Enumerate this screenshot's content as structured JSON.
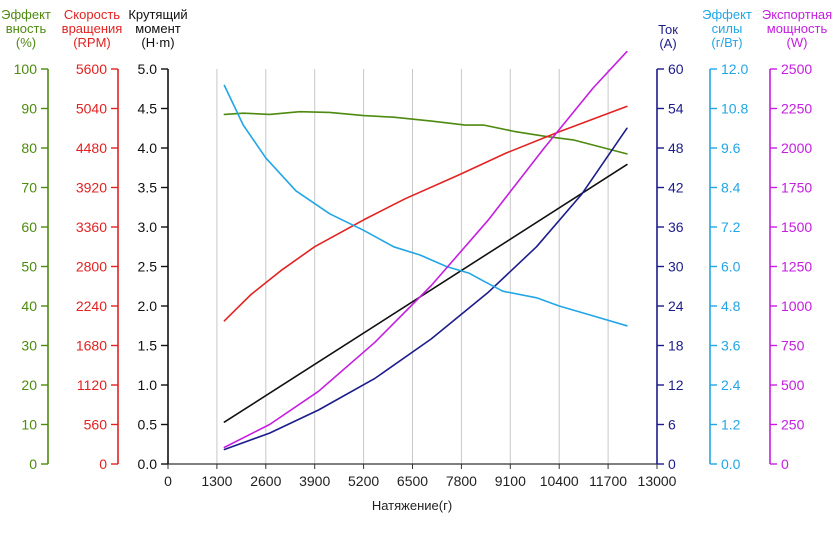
{
  "chart_data": {
    "type": "line",
    "title": "",
    "xlabel": "Натяжение(г)",
    "x_ticks": [
      "0",
      "1300",
      "2600",
      "3900",
      "5200",
      "6500",
      "7800",
      "9100",
      "10400",
      "11700",
      "13000"
    ],
    "xlim": [
      0,
      13000
    ],
    "grid": "vertical",
    "legend": "none",
    "axes": {
      "efficiency": {
        "header": [
          "Эффект",
          "вность",
          "(%)"
        ],
        "range": [
          0,
          100
        ],
        "ticks": [
          "0",
          "10",
          "20",
          "30",
          "40",
          "50",
          "60",
          "70",
          "80",
          "90",
          "100"
        ],
        "color": "#4e8a0f"
      },
      "speed": {
        "header": [
          "Скорость",
          "вращения",
          "(RPM)"
        ],
        "range": [
          0,
          5600
        ],
        "ticks": [
          "0",
          "560",
          "1120",
          "1680",
          "2240",
          "2800",
          "3360",
          "3920",
          "4480",
          "5040",
          "5600"
        ],
        "color": "#e32222"
      },
      "torque": {
        "header": [
          "Крутящий",
          "момент",
          "(Н·m)"
        ],
        "range": [
          0,
          5.0
        ],
        "ticks": [
          "0.0",
          "0.5",
          "1.0",
          "1.5",
          "2.0",
          "2.5",
          "3.0",
          "3.5",
          "4.0",
          "4.5",
          "5.0"
        ],
        "color": "#111111"
      },
      "current": {
        "header": [
          "Ток",
          "(A)"
        ],
        "range": [
          0,
          60
        ],
        "ticks": [
          "0",
          "6",
          "12",
          "18",
          "24",
          "30",
          "36",
          "42",
          "48",
          "54",
          "60"
        ],
        "color": "#1c1c8c"
      },
      "force_efficiency": {
        "header": [
          "Эффект",
          "силы",
          "(г/Вт)"
        ],
        "range": [
          0,
          12
        ],
        "ticks": [
          "0.0",
          "1.2",
          "2.4",
          "3.6",
          "4.8",
          "6.0",
          "7.2",
          "8.4",
          "9.6",
          "10.8",
          "12.0"
        ],
        "color": "#22a6e6"
      },
      "power": {
        "header": [
          "Экспортная",
          "мощность",
          "(W)"
        ],
        "range": [
          0,
          2500
        ],
        "ticks": [
          "0",
          "250",
          "500",
          "750",
          "1000",
          "1250",
          "1500",
          "1750",
          "2000",
          "2250",
          "2500"
        ],
        "color": "#c51ee0"
      }
    },
    "series": [
      {
        "axis": "efficiency",
        "color": "#4e8a0f",
        "points": [
          [
            1500,
            88.5
          ],
          [
            2000,
            88.8
          ],
          [
            2700,
            88.5
          ],
          [
            3500,
            89.2
          ],
          [
            4300,
            89.0
          ],
          [
            5200,
            88.2
          ],
          [
            6000,
            87.8
          ],
          [
            7000,
            86.8
          ],
          [
            7900,
            85.8
          ],
          [
            8400,
            85.8
          ],
          [
            9200,
            84.2
          ],
          [
            10000,
            83.0
          ],
          [
            10800,
            82.0
          ],
          [
            12200,
            78.5
          ]
        ]
      },
      {
        "axis": "speed",
        "color": "#e32222",
        "points": [
          [
            1500,
            2030
          ],
          [
            2200,
            2400
          ],
          [
            3000,
            2740
          ],
          [
            3900,
            3080
          ],
          [
            5200,
            3460
          ],
          [
            6300,
            3760
          ],
          [
            7700,
            4090
          ],
          [
            9000,
            4410
          ],
          [
            10400,
            4710
          ],
          [
            11800,
            4990
          ],
          [
            12200,
            5070
          ]
        ]
      },
      {
        "axis": "torque",
        "color": "#111111",
        "points": [
          [
            1500,
            0.53
          ],
          [
            12200,
            3.79
          ]
        ]
      },
      {
        "axis": "current",
        "color": "#1c1c8c",
        "points": [
          [
            1500,
            2.2
          ],
          [
            2700,
            4.7
          ],
          [
            4000,
            8.2
          ],
          [
            5500,
            13.0
          ],
          [
            7000,
            19.0
          ],
          [
            8500,
            26.0
          ],
          [
            9800,
            33.0
          ],
          [
            11000,
            41.0
          ],
          [
            12200,
            51.0
          ]
        ]
      },
      {
        "axis": "force_efficiency",
        "color": "#22a6e6",
        "points": [
          [
            1500,
            11.5
          ],
          [
            2000,
            10.3
          ],
          [
            2600,
            9.3
          ],
          [
            3400,
            8.3
          ],
          [
            4300,
            7.6
          ],
          [
            5200,
            7.1
          ],
          [
            6000,
            6.6
          ],
          [
            6700,
            6.35
          ],
          [
            7400,
            6.0
          ],
          [
            8000,
            5.8
          ],
          [
            8400,
            5.55
          ],
          [
            8900,
            5.25
          ],
          [
            9800,
            5.05
          ],
          [
            10400,
            4.8
          ],
          [
            11300,
            4.5
          ],
          [
            12200,
            4.2
          ]
        ]
      },
      {
        "axis": "power",
        "color": "#c51ee0",
        "points": [
          [
            1500,
            105
          ],
          [
            2700,
            250
          ],
          [
            4000,
            460
          ],
          [
            5500,
            770
          ],
          [
            7000,
            1130
          ],
          [
            8500,
            1540
          ],
          [
            10000,
            2000
          ],
          [
            11300,
            2380
          ],
          [
            12200,
            2610
          ]
        ]
      }
    ]
  }
}
